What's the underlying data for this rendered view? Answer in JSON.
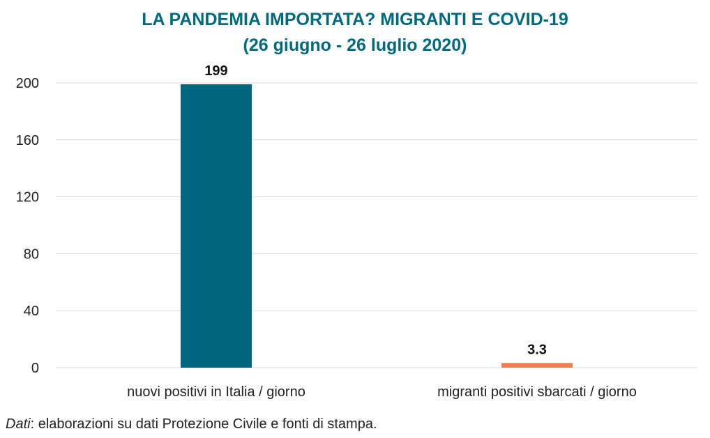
{
  "chart_data": {
    "type": "bar",
    "title": "LA PANDEMIA IMPORTATA? MIGRANTI E COVID-19",
    "subtitle": "(26 giugno - 26 luglio 2020)",
    "categories": [
      "nuovi positivi in Italia / giorno",
      "migranti positivi sbarcati / giorno"
    ],
    "values": [
      199,
      3.3
    ],
    "value_labels": [
      "199",
      "3.3"
    ],
    "colors": [
      "#00677e",
      "#f07f4f"
    ],
    "title_color": "#006a80",
    "ylim": [
      0,
      200
    ],
    "yticks": [
      0,
      40,
      80,
      120,
      160,
      200
    ],
    "grid": true,
    "legend": "none"
  },
  "source": {
    "prefix": "Dati",
    "text": ": elaborazioni su dati Protezione Civile e fonti di stampa."
  }
}
